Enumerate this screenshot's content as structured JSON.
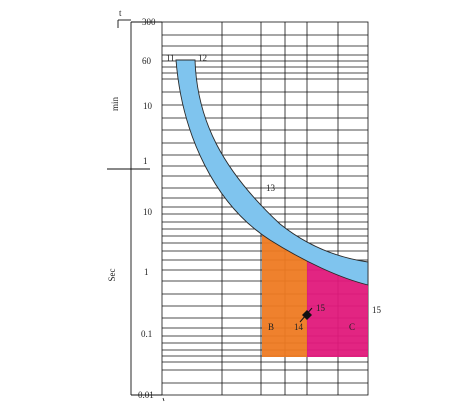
{
  "axis": {
    "top_label": "t",
    "min_unit": "min",
    "sec_unit": "Sec",
    "ticks": [
      "300",
      "60",
      "10",
      "1",
      "10",
      "1",
      "0.1",
      "0.01"
    ]
  },
  "bands": {
    "blue_label": "13",
    "blue_start_left": "11",
    "blue_start_right": "12",
    "orange_label": "B",
    "magenta_label": "C",
    "point_label": "14",
    "magenta_inner_label": "15",
    "magenta_outer_label": "15"
  },
  "colors": {
    "blue": "#7fc4ee",
    "orange": "#ee7a22",
    "magenta": "#e0197b",
    "grid": "#111111"
  }
}
